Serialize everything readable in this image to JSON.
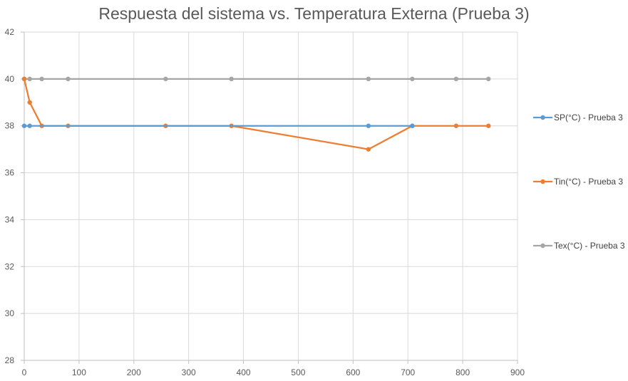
{
  "chart_data": {
    "type": "scatter",
    "title": "Respuesta del sistema vs. Temperatura Externa (Prueba 3)",
    "xlabel": "",
    "ylabel": "",
    "xlim": [
      0,
      900
    ],
    "ylim": [
      28,
      42
    ],
    "x_ticks": [
      0,
      100,
      200,
      300,
      400,
      500,
      600,
      700,
      800,
      900
    ],
    "y_ticks": [
      28,
      30,
      32,
      34,
      36,
      38,
      40,
      42
    ],
    "grid": true,
    "legend_position": "right",
    "series": [
      {
        "name": "SP(°C) - Prueba 3",
        "color": "#5b9bd5",
        "x": [
          0,
          10,
          628,
          708
        ],
        "y": [
          38,
          38,
          38,
          38
        ]
      },
      {
        "name": "Tin(°C) - Prueba 3",
        "color": "#ed7d31",
        "x": [
          0,
          10,
          32,
          80,
          258,
          378,
          628,
          708,
          788,
          847
        ],
        "y": [
          40,
          39,
          38,
          38,
          38,
          38,
          37,
          38,
          38,
          38
        ]
      },
      {
        "name": "Tex(°C) - Prueba 3",
        "color": "#a5a5a5",
        "x": [
          0,
          10,
          32,
          80,
          258,
          378,
          628,
          708,
          788,
          847
        ],
        "y": [
          40,
          40,
          40,
          40,
          40,
          40,
          40,
          40,
          40,
          40
        ]
      }
    ]
  }
}
